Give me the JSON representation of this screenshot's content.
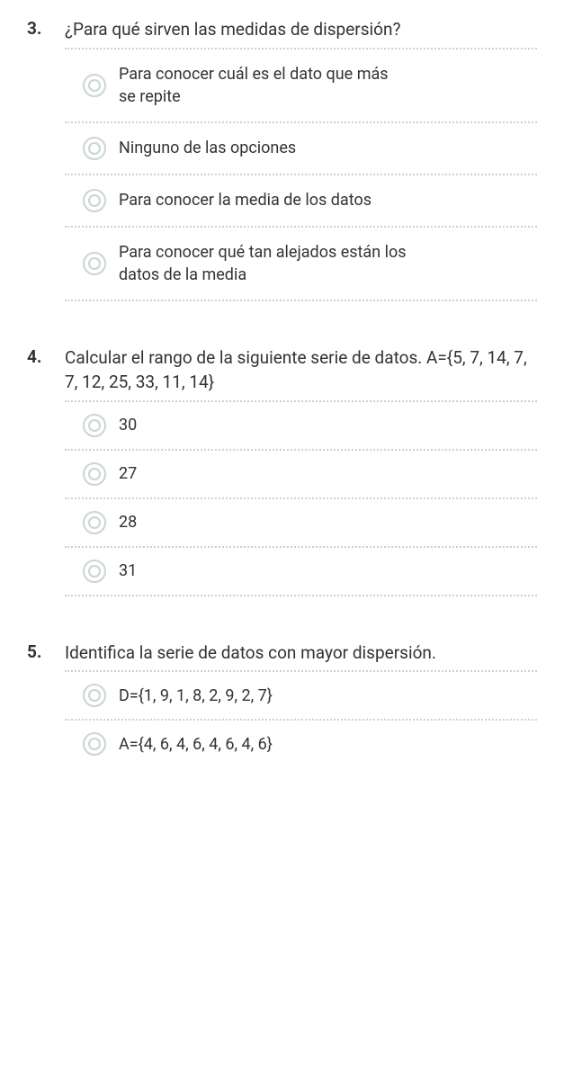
{
  "questions": [
    {
      "number": "3.",
      "text": "¿Para qué sirven las medidas de dispersión?",
      "options": [
        "Para conocer cuál es el dato que más se repite",
        "Ninguno de las opciones",
        "Para conocer la media de los datos",
        "Para conocer qué tan alejados están los datos de la media"
      ]
    },
    {
      "number": "4.",
      "text": "Calcular el rango de la siguiente serie de datos. A={5, 7, 14, 7, 7, 12, 25, 33, 11, 14}",
      "options": [
        "30",
        "27",
        "28",
        "31"
      ]
    },
    {
      "number": "5.",
      "text": "Identifica la serie de datos con mayor dispersión.",
      "options": [
        "D={1, 9, 1, 8, 2, 9, 2, 7}",
        "A={4, 6, 4, 6, 4, 6, 4, 6}"
      ]
    }
  ],
  "colors": {
    "text": "#333333",
    "divider": "#d0d0d0",
    "radio_border": "#c9d6d4",
    "background": "#ffffff"
  }
}
